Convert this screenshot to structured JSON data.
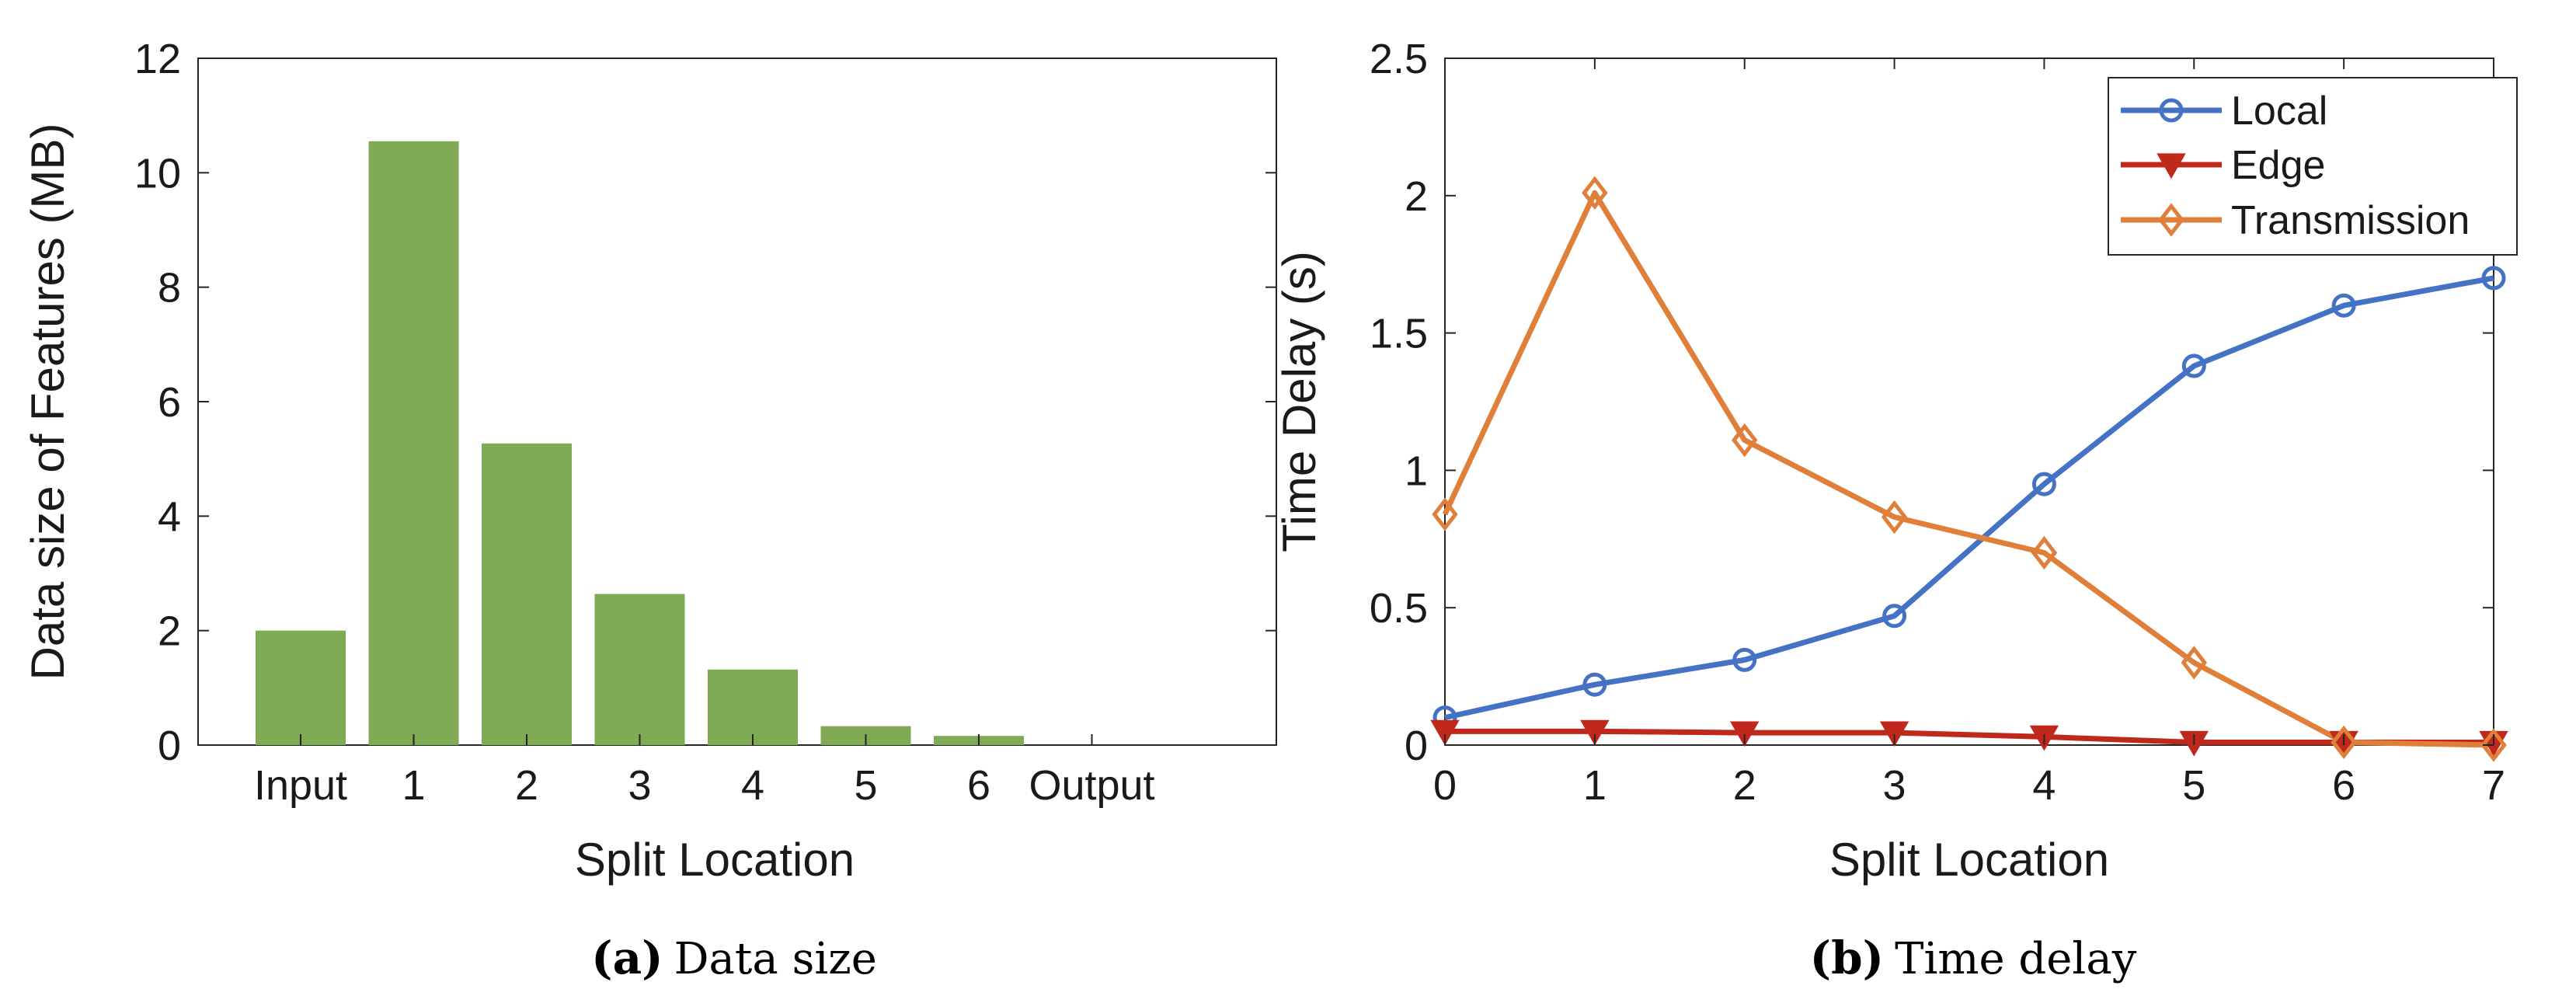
{
  "chart_data": [
    {
      "type": "bar",
      "panel_label": "a",
      "caption": "Data size",
      "title": "",
      "xlabel": "Split Location",
      "ylabel": "Data size of Features (MB)",
      "categories": [
        "Input",
        "1",
        "2",
        "3",
        "4",
        "5",
        "6",
        "Output"
      ],
      "values": [
        2.0,
        10.55,
        5.27,
        2.64,
        1.32,
        0.33,
        0.16,
        0.0
      ],
      "ylim": [
        0,
        12
      ],
      "yticks": [
        0,
        2,
        4,
        6,
        8,
        10,
        12
      ],
      "grid": false,
      "colors": {
        "bar": "#7fab55"
      }
    },
    {
      "type": "line",
      "panel_label": "b",
      "caption": "Time delay",
      "title": "",
      "xlabel": "Split Location",
      "ylabel": "Time Delay (s)",
      "x": [
        0,
        1,
        2,
        3,
        4,
        5,
        6,
        7
      ],
      "xlim": [
        0,
        7
      ],
      "ylim": [
        0,
        2.5
      ],
      "xticks": [
        0,
        1,
        2,
        3,
        4,
        5,
        6,
        7
      ],
      "yticks": [
        0,
        0.5,
        1,
        1.5,
        2,
        2.5
      ],
      "ytick_labels": [
        "0",
        "0.5",
        "1",
        "1.5",
        "2",
        "2.5"
      ],
      "grid": false,
      "legend_position": "top-right",
      "series": [
        {
          "name": "Local",
          "marker": "circle",
          "color": "#4472c4",
          "values": [
            0.1,
            0.22,
            0.31,
            0.47,
            0.95,
            1.38,
            1.6,
            1.7
          ]
        },
        {
          "name": "Edge",
          "marker": "triangle-down",
          "color": "#c0281b",
          "values": [
            0.05,
            0.05,
            0.045,
            0.045,
            0.03,
            0.01,
            0.01,
            0.01
          ]
        },
        {
          "name": "Transmission",
          "marker": "diamond",
          "color": "#e07f3a",
          "values": [
            0.84,
            2.01,
            1.11,
            0.83,
            0.7,
            0.3,
            0.01,
            0.0
          ]
        }
      ]
    }
  ]
}
